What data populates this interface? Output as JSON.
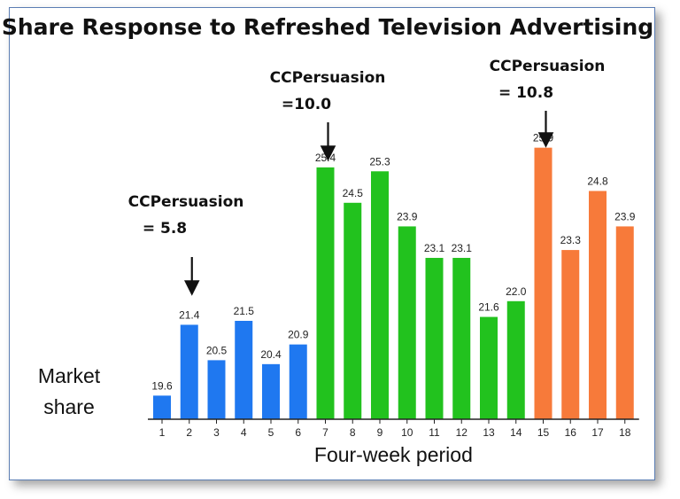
{
  "title": "Share Response to Refreshed Television Advertising",
  "chart_data": {
    "type": "bar",
    "categories": [
      "1",
      "2",
      "3",
      "4",
      "5",
      "6",
      "7",
      "8",
      "9",
      "10",
      "11",
      "12",
      "13",
      "14",
      "15",
      "16",
      "17",
      "18"
    ],
    "values": [
      19.6,
      21.4,
      20.5,
      21.5,
      20.4,
      20.9,
      25.4,
      24.5,
      25.3,
      23.9,
      23.1,
      23.1,
      21.6,
      22.0,
      25.9,
      23.3,
      24.8,
      23.9
    ],
    "groups": [
      {
        "from": 1,
        "to": 6,
        "color": "#1f78f0"
      },
      {
        "from": 7,
        "to": 14,
        "color": "#22c21e"
      },
      {
        "from": 15,
        "to": 18,
        "color": "#f77a3a"
      }
    ],
    "xlabel": "Four-week period",
    "ylabel": [
      "Market",
      "share"
    ],
    "ylim": [
      19,
      26.5
    ],
    "grid": false,
    "annotations": [
      {
        "line1": "CCPersuasion",
        "line2": "= 5.8",
        "at_period": 2
      },
      {
        "line1": "CCPersuasion",
        "line2": "=10.0",
        "at_period": 7
      },
      {
        "line1": "CCPersuasion",
        "line2": "= 10.8",
        "at_period": 15
      }
    ]
  }
}
